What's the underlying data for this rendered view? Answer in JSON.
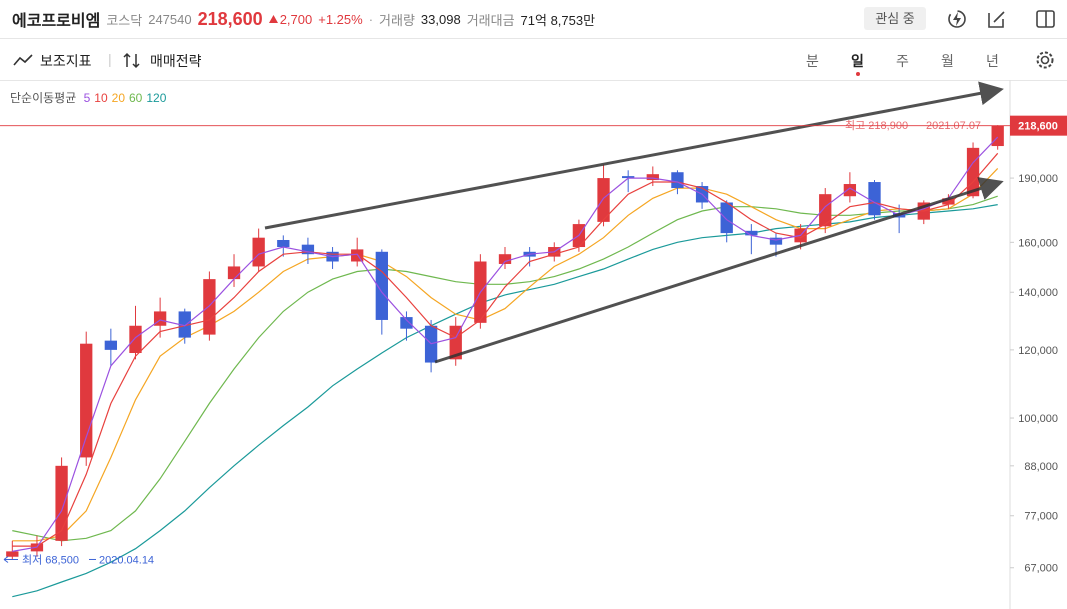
{
  "header": {
    "name": "에코프로비엠",
    "market": "코스닥",
    "code": "247540",
    "price": "218,600",
    "change": "2,700",
    "change_pct": "+1.25%",
    "volume_label": "거래량",
    "volume": "33,098",
    "amount_label": "거래대금",
    "amount": "71억 8,753만",
    "watch": "관심 중"
  },
  "toolbar": {
    "indicators": "보조지표",
    "strategy": "매매전략",
    "periods": [
      "분",
      "일",
      "주",
      "월",
      "년"
    ]
  },
  "chart_data": {
    "type": "candlestick",
    "log_scale": true,
    "up_color": "#e0393e",
    "down_color": "#3c63d6",
    "ylim": [
      60000,
      247000
    ],
    "yticks": [
      {
        "value": 67000,
        "label": "67,000"
      },
      {
        "value": 77000,
        "label": "77,000"
      },
      {
        "value": 88000,
        "label": "88,000"
      },
      {
        "value": 100000,
        "label": "100,000"
      },
      {
        "value": 120000,
        "label": "120,000"
      },
      {
        "value": 140000,
        "label": "140,000"
      },
      {
        "value": 160000,
        "label": "160,000"
      },
      {
        "value": 190000,
        "label": "190,000"
      }
    ],
    "current_price": {
      "value": 218600,
      "label": "218,600"
    },
    "high_label": "최고 218,900",
    "high_date": "2021.07.07",
    "low_label": "최저 68,500",
    "low_date": "2020.04.14",
    "legend_title": "단순이동평균",
    "open": [
      69000,
      70000,
      72000,
      90000,
      123000,
      119000,
      128000,
      133000,
      125000,
      145000,
      150000,
      161000,
      159000,
      156000,
      152000,
      156000,
      131000,
      128000,
      117000,
      129000,
      151000,
      156000,
      154000,
      158000,
      169000,
      191000,
      189000,
      193000,
      186000,
      178000,
      165000,
      162000,
      160000,
      167000,
      181000,
      188000,
      173000,
      170000,
      177000,
      181000,
      207000
    ],
    "high": [
      72000,
      73000,
      90000,
      126000,
      127000,
      135000,
      138000,
      134000,
      148000,
      155000,
      166000,
      163000,
      162000,
      158000,
      162000,
      157000,
      133000,
      130000,
      131000,
      155000,
      158000,
      158000,
      160000,
      170000,
      197000,
      194000,
      196000,
      194000,
      188000,
      179000,
      168000,
      164000,
      168000,
      185000,
      193000,
      189000,
      177000,
      179000,
      182000,
      209000,
      218900
    ],
    "low": [
      68500,
      69000,
      71000,
      88000,
      115000,
      117000,
      124000,
      122000,
      123000,
      142000,
      148000,
      154000,
      151000,
      149000,
      150000,
      125000,
      123000,
      113000,
      115000,
      127000,
      149000,
      150000,
      152000,
      156000,
      167000,
      183000,
      186000,
      182000,
      175000,
      160000,
      155000,
      154000,
      157000,
      164000,
      178000,
      170000,
      164000,
      168000,
      175000,
      180000,
      205000
    ],
    "close": [
      70000,
      71500,
      88000,
      122000,
      120000,
      128000,
      133000,
      124000,
      145000,
      150000,
      162000,
      158000,
      155000,
      152000,
      157000,
      130000,
      127000,
      116000,
      128000,
      152000,
      155000,
      154000,
      158000,
      168000,
      190000,
      190000,
      192000,
      185000,
      178000,
      164000,
      163000,
      159000,
      166000,
      182000,
      187000,
      172000,
      171000,
      178000,
      180000,
      206000,
      218600
    ],
    "series": [
      {
        "name": "5",
        "color": "#9b51e0",
        "values": [
          70000,
          70800,
          78000,
          95000,
          115000,
          124000,
          130000,
          128000,
          135000,
          145000,
          155000,
          158000,
          156000,
          154000,
          155000,
          140000,
          130000,
          122000,
          124000,
          140000,
          152000,
          155000,
          156000,
          163000,
          180000,
          190000,
          190000,
          188000,
          182000,
          170000,
          163000,
          161000,
          163000,
          176000,
          185000,
          178000,
          172000,
          175000,
          180000,
          198000,
          212000
        ]
      },
      {
        "name": "10",
        "color": "#e8413e",
        "values": [
          71000,
          71000,
          74000,
          86000,
          104000,
          118000,
          126000,
          128000,
          130000,
          138000,
          148000,
          155000,
          156000,
          155000,
          155000,
          148000,
          138000,
          128000,
          124000,
          130000,
          142000,
          152000,
          155000,
          158000,
          170000,
          182000,
          188000,
          188000,
          185000,
          178000,
          170000,
          164000,
          162000,
          168000,
          176000,
          178000,
          175000,
          174000,
          177000,
          188000,
          203000
        ]
      },
      {
        "name": "20",
        "color": "#f5a623",
        "values": [
          72000,
          72000,
          73000,
          78000,
          90000,
          105000,
          118000,
          124000,
          128000,
          133000,
          140000,
          148000,
          153000,
          154000,
          155000,
          152000,
          146000,
          138000,
          132000,
          130000,
          134000,
          142000,
          150000,
          155000,
          162000,
          172000,
          180000,
          185000,
          185000,
          182000,
          176000,
          170000,
          166000,
          166000,
          170000,
          174000,
          175000,
          174000,
          175000,
          182000,
          195000
        ]
      },
      {
        "name": "60",
        "color": "#6fb84f",
        "values": [
          74000,
          73000,
          72000,
          72500,
          74000,
          78000,
          85000,
          94000,
          104000,
          114000,
          124000,
          133000,
          140000,
          145000,
          148000,
          149000,
          148000,
          146000,
          144000,
          143000,
          143000,
          144000,
          146000,
          149000,
          153000,
          158000,
          164000,
          170000,
          174000,
          176000,
          176000,
          175000,
          173000,
          172000,
          172000,
          173000,
          174000,
          174000,
          175000,
          177000,
          181000
        ]
      },
      {
        "name": "120",
        "color": "#1b9a9a",
        "values": [
          62000,
          63000,
          64500,
          66000,
          68000,
          70500,
          74000,
          78000,
          83000,
          88000,
          93000,
          98000,
          103000,
          109000,
          114000,
          119000,
          124000,
          128000,
          132000,
          136000,
          139000,
          141000,
          143000,
          146000,
          149000,
          153000,
          157000,
          160000,
          162000,
          163000,
          164000,
          166000,
          167000,
          168000,
          169000,
          171000,
          172000,
          173000,
          174000,
          175000,
          177000
        ]
      }
    ]
  }
}
